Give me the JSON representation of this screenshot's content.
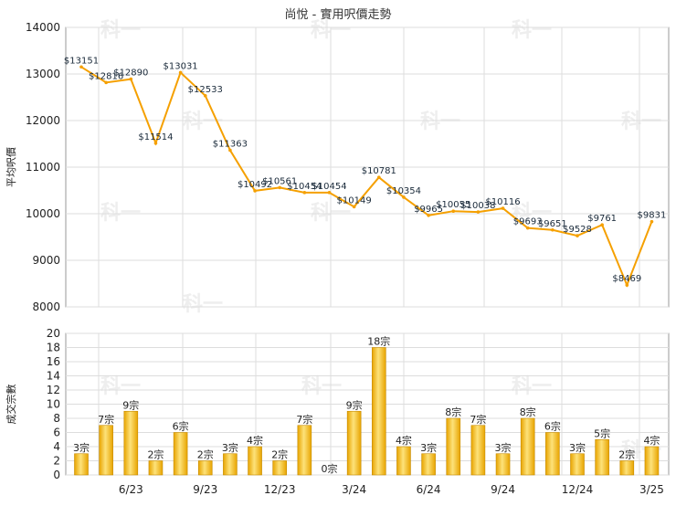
{
  "title": "尚悅 - 實用呎價走勢",
  "watermark_text": "科一",
  "colors": {
    "line": "#f5a000",
    "bar_light": "#fde27a",
    "bar_dark": "#e8a400",
    "bar_edge": "#c58a00",
    "grid": "#dddddd"
  },
  "chart_data": [
    {
      "type": "line",
      "title": "尚悅 - 實用呎價走勢",
      "ylabel": "平均呎價",
      "ylim": [
        8000,
        14000
      ],
      "yticks": [
        "14000",
        "13000",
        "12000",
        "11000",
        "10000",
        "9000",
        "8000"
      ],
      "grid": true,
      "values": [
        13151,
        12816,
        12890,
        11514,
        13031,
        12533,
        11363,
        10492,
        10561,
        10454,
        10454,
        10149,
        10781,
        10354,
        9965,
        10055,
        10038,
        10116,
        9693,
        9651,
        9528,
        9761,
        8469,
        9831
      ],
      "point_labels": [
        "$13151",
        "$12816",
        "$12890",
        "$11514",
        "$13031",
        "$12533",
        "$11363",
        "$10492",
        "$10561",
        "$10454",
        "$10454",
        "$10149",
        "$10781",
        "$10354",
        "$9965",
        "$10055",
        "$10038",
        "$10116",
        "$9693",
        "$9651",
        "$9528",
        "$9761",
        "$8469",
        "$9831"
      ]
    },
    {
      "type": "bar",
      "ylabel": "成交宗數",
      "ylim": [
        0,
        20
      ],
      "yticks": [
        "20",
        "18",
        "16",
        "14",
        "12",
        "10",
        "8",
        "6",
        "4",
        "2",
        "0"
      ],
      "grid": true,
      "x_tick_labels": [
        "6/23",
        "9/23",
        "12/23",
        "3/24",
        "6/24",
        "9/24",
        "12/24",
        "3/25"
      ],
      "values": [
        3,
        7,
        9,
        2,
        6,
        2,
        3,
        4,
        2,
        7,
        0,
        9,
        18,
        4,
        3,
        8,
        7,
        3,
        8,
        6,
        3,
        5,
        2,
        4
      ],
      "bar_labels": [
        "3宗",
        "7宗",
        "9宗",
        "2宗",
        "6宗",
        "2宗",
        "3宗",
        "4宗",
        "2宗",
        "7宗",
        "0宗",
        "9宗",
        "18宗",
        "4宗",
        "3宗",
        "8宗",
        "7宗",
        "3宗",
        "8宗",
        "6宗",
        "3宗",
        "5宗",
        "2宗",
        "4宗"
      ]
    }
  ]
}
